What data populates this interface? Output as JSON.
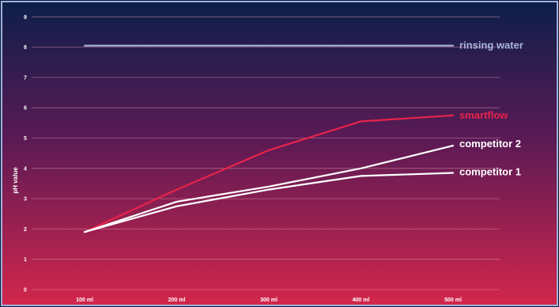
{
  "chart_data": {
    "type": "line",
    "title": "",
    "xlabel": "",
    "ylabel": "pH value",
    "categories": [
      "100 ml",
      "200 ml",
      "300 ml",
      "400 ml",
      "500 ml"
    ],
    "ylim": [
      0,
      9
    ],
    "yticks": [
      0,
      1,
      2,
      3,
      4,
      5,
      6,
      7,
      8,
      9
    ],
    "grid": true,
    "legend": "inline labels at line ends (right)",
    "series": [
      {
        "name": "rinsing water",
        "values": [
          8.05,
          8.05,
          8.05,
          8.05,
          8.05
        ],
        "color": "#aab6dc"
      },
      {
        "name": "smartflow",
        "values": [
          1.9,
          3.3,
          4.6,
          5.55,
          5.75
        ],
        "color": "#e8234a"
      },
      {
        "name": "competitor 2",
        "values": [
          1.9,
          2.9,
          3.4,
          4.0,
          4.75
        ],
        "color": "#ffffff"
      },
      {
        "name": "competitor 1",
        "values": [
          1.9,
          2.75,
          3.3,
          3.75,
          3.85
        ],
        "color": "#ffffff"
      }
    ]
  },
  "colors": {
    "background_top": "#0d1f4a",
    "background_bottom": "#d3264c",
    "frame": "#9fb2d8",
    "grid": "#e6a0b4"
  }
}
